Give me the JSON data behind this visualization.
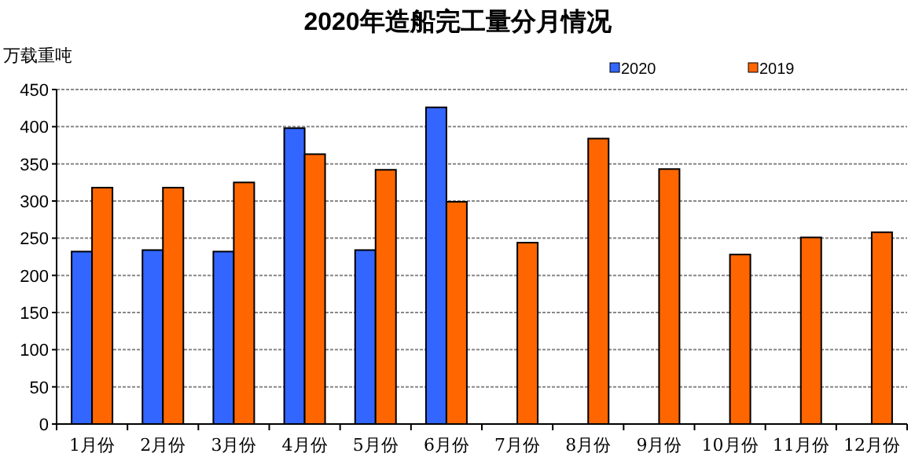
{
  "chart_data": {
    "type": "bar",
    "title": "2020年造船完工量分月情况",
    "ylabel": "万载重吨",
    "categories": [
      "1月份",
      "2月份",
      "3月份",
      "4月份",
      "5月份",
      "6月份",
      "7月份",
      "8月份",
      "9月份",
      "10月份",
      "11月份",
      "12月份"
    ],
    "series": [
      {
        "name": "2020",
        "color": "#3366ff",
        "values": [
          232,
          234,
          232,
          398,
          234,
          426,
          null,
          null,
          null,
          null,
          null,
          null
        ]
      },
      {
        "name": "2019",
        "color": "#ff6600",
        "values": [
          318,
          318,
          325,
          363,
          342,
          299,
          244,
          384,
          343,
          228,
          251,
          258
        ]
      }
    ],
    "ylim": [
      0,
      450
    ],
    "yticks": [
      0,
      50,
      100,
      150,
      200,
      250,
      300,
      350,
      400,
      450
    ],
    "grid": "y",
    "legend": "top"
  }
}
